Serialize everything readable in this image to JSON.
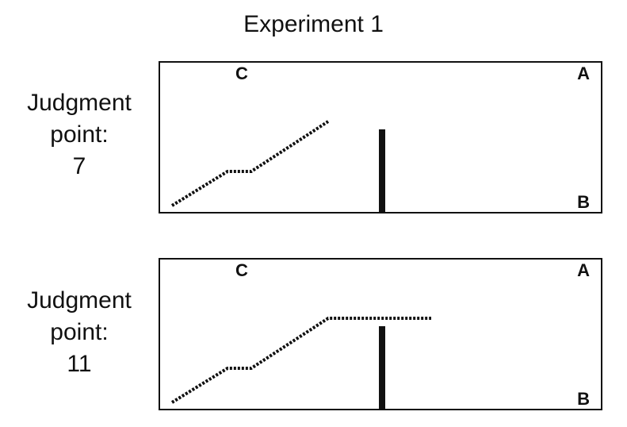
{
  "title": "Experiment 1",
  "panels": [
    {
      "label_lines": [
        "Judgment",
        "point:",
        "7"
      ],
      "corners": {
        "c": "C",
        "a": "A",
        "b": "B"
      }
    },
    {
      "label_lines": [
        "Judgment",
        "point:",
        "11"
      ],
      "corners": {
        "c": "C",
        "a": "A",
        "b": "B"
      }
    }
  ],
  "colors": {
    "ink": "#111111",
    "background": "#ffffff"
  }
}
